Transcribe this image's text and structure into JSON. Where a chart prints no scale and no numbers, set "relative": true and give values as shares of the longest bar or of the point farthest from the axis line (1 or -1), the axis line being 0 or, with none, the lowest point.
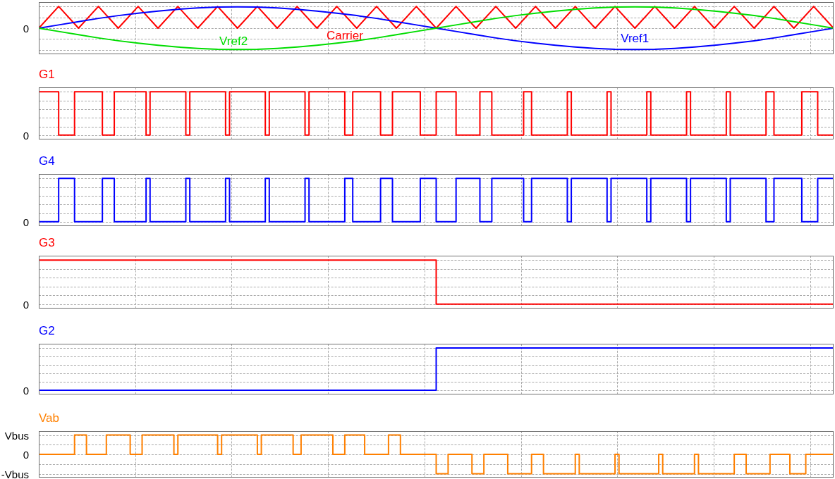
{
  "chart_data": [
    {
      "type": "line",
      "relative": true,
      "grid": true,
      "annotations": [
        "0"
      ],
      "categories": [
        null,
        null,
        null,
        null,
        null,
        null,
        null,
        null,
        null,
        null,
        null,
        null,
        null,
        null,
        null,
        null,
        null,
        null,
        null,
        null,
        null,
        null,
        null,
        null,
        null,
        null,
        null,
        null,
        null,
        null,
        null,
        null,
        null,
        null,
        null,
        null,
        null,
        null,
        null,
        null,
        null
      ],
      "series": [
        {
          "name": "Carrier",
          "color": "#ff0000",
          "values": [
            0,
            1,
            0,
            1,
            0,
            1,
            0,
            1,
            0,
            1,
            0,
            1,
            0,
            1,
            0,
            1,
            0,
            1,
            0,
            1,
            0,
            1,
            0,
            1,
            0,
            1,
            0,
            1,
            0,
            1,
            0,
            1,
            0,
            1,
            0,
            1,
            0,
            1,
            0,
            1,
            0
          ]
        },
        {
          "name": "Vref1",
          "color": "#0000ff",
          "values": [
            0,
            0.15,
            0.3,
            0.45,
            0.58,
            0.69,
            0.79,
            0.87,
            0.93,
            0.97,
            0.98,
            0.97,
            0.93,
            0.87,
            0.79,
            0.69,
            0.58,
            0.45,
            0.3,
            0.15,
            0,
            -0.15,
            -0.3,
            -0.45,
            -0.58,
            -0.69,
            -0.79,
            -0.87,
            -0.93,
            -0.97,
            -0.98,
            -0.97,
            -0.93,
            -0.87,
            -0.79,
            -0.69,
            -0.58,
            -0.45,
            -0.3,
            -0.15,
            0
          ]
        },
        {
          "name": "Vref2",
          "color": "#00dd00",
          "values": [
            0,
            -0.15,
            -0.3,
            -0.45,
            -0.58,
            -0.69,
            -0.79,
            -0.87,
            -0.93,
            -0.97,
            -0.98,
            -0.97,
            -0.93,
            -0.87,
            -0.79,
            -0.69,
            -0.58,
            -0.45,
            -0.3,
            -0.15,
            0,
            0.15,
            0.3,
            0.45,
            0.58,
            0.69,
            0.79,
            0.87,
            0.93,
            0.97,
            0.98,
            0.97,
            0.93,
            0.87,
            0.79,
            0.69,
            0.58,
            0.45,
            0.3,
            0.15,
            0
          ]
        }
      ]
    },
    {
      "type": "step",
      "title": "G1",
      "relative": true,
      "grid": true,
      "annotations": [
        "0"
      ],
      "categories": [
        null,
        null,
        null,
        null,
        null,
        null,
        null,
        null,
        null,
        null,
        null,
        null,
        null,
        null,
        null,
        null,
        null,
        null,
        null,
        null,
        null,
        null,
        null,
        null,
        null,
        null,
        null,
        null,
        null,
        null,
        null,
        null,
        null,
        null,
        null,
        null,
        null,
        null,
        null,
        null,
        null,
        null,
        null,
        null,
        null,
        null,
        null,
        null,
        null,
        null,
        null,
        null,
        null,
        null,
        null,
        null,
        null,
        null,
        null,
        null,
        null,
        null,
        null,
        null,
        null,
        null,
        null,
        null,
        null,
        null,
        null,
        null,
        null,
        null,
        null,
        null,
        null,
        null,
        null,
        null,
        null,
        null,
        null,
        null,
        null,
        null,
        null,
        null,
        null,
        null,
        null,
        null,
        null,
        null,
        null,
        null,
        null,
        null,
        null,
        null,
        null,
        null,
        null,
        null,
        null,
        null,
        null,
        null,
        null,
        null,
        null,
        null,
        null,
        null,
        null,
        null,
        null,
        null,
        null,
        null,
        null,
        null,
        null,
        null,
        null,
        null,
        null,
        null,
        null,
        null,
        null,
        null,
        null,
        null,
        null,
        null,
        null,
        null,
        null,
        null,
        null,
        null,
        null,
        null,
        null,
        null,
        null,
        null,
        null,
        null,
        null,
        null,
        null,
        null,
        null,
        null,
        null,
        null,
        null,
        null,
        null,
        null,
        null,
        null,
        null,
        null,
        null,
        null,
        null,
        null,
        null,
        null,
        null,
        null,
        null,
        null,
        null,
        null,
        null,
        null,
        null,
        null,
        null,
        null,
        null,
        null,
        null,
        null,
        null,
        null,
        null,
        null,
        null,
        null,
        null,
        null,
        null,
        null,
        null,
        null,
        null
      ],
      "series": [
        {
          "color": "#ff0000",
          "values": [
            1,
            1,
            1,
            1,
            1,
            0,
            0,
            0,
            0,
            1,
            1,
            1,
            1,
            1,
            1,
            1,
            0,
            0,
            0,
            1,
            1,
            1,
            1,
            1,
            1,
            1,
            1,
            0,
            1,
            1,
            1,
            1,
            1,
            1,
            1,
            1,
            1,
            0,
            1,
            1,
            1,
            1,
            1,
            1,
            1,
            1,
            1,
            0,
            1,
            1,
            1,
            1,
            1,
            1,
            1,
            1,
            1,
            0,
            1,
            1,
            1,
            1,
            1,
            1,
            1,
            1,
            1,
            0,
            1,
            1,
            1,
            1,
            1,
            1,
            1,
            1,
            1,
            0,
            0,
            1,
            1,
            1,
            1,
            1,
            1,
            1,
            0,
            0,
            0,
            1,
            1,
            1,
            1,
            1,
            1,
            1,
            0,
            0,
            0,
            0,
            1,
            1,
            1,
            1,
            1,
            0,
            0,
            0,
            0,
            0,
            0,
            1,
            1,
            1,
            0,
            0,
            0,
            0,
            0,
            0,
            0,
            0,
            1,
            1,
            0,
            0,
            0,
            0,
            0,
            0,
            0,
            0,
            0,
            1,
            0,
            0,
            0,
            0,
            0,
            0,
            0,
            0,
            0,
            1,
            0,
            0,
            0,
            0,
            0,
            0,
            0,
            0,
            0,
            1,
            0,
            0,
            0,
            0,
            0,
            0,
            0,
            0,
            0,
            1,
            0,
            0,
            0,
            0,
            0,
            0,
            0,
            0,
            0,
            1,
            0,
            0,
            0,
            0,
            0,
            0,
            0,
            0,
            0,
            1,
            1,
            0,
            0,
            0,
            0,
            0,
            0,
            0,
            1,
            1,
            1,
            1,
            0,
            0,
            0,
            0,
            0
          ]
        }
      ]
    },
    {
      "type": "step",
      "title": "G4",
      "relative": true,
      "grid": true,
      "annotations": [
        "0"
      ],
      "categories": [
        null,
        null,
        null,
        null,
        null,
        null,
        null,
        null,
        null,
        null,
        null,
        null,
        null,
        null,
        null,
        null,
        null,
        null,
        null,
        null,
        null,
        null,
        null,
        null,
        null,
        null,
        null,
        null,
        null,
        null,
        null,
        null,
        null,
        null,
        null,
        null,
        null,
        null,
        null,
        null,
        null,
        null,
        null,
        null,
        null,
        null,
        null,
        null,
        null,
        null,
        null,
        null,
        null,
        null,
        null,
        null,
        null,
        null,
        null,
        null,
        null,
        null,
        null,
        null,
        null,
        null,
        null,
        null,
        null,
        null,
        null,
        null,
        null,
        null,
        null,
        null,
        null,
        null,
        null,
        null,
        null,
        null,
        null,
        null,
        null,
        null,
        null,
        null,
        null,
        null,
        null,
        null,
        null,
        null,
        null,
        null,
        null,
        null,
        null,
        null,
        null,
        null,
        null,
        null,
        null,
        null,
        null,
        null,
        null,
        null,
        null,
        null,
        null,
        null,
        null,
        null,
        null,
        null,
        null,
        null,
        null,
        null,
        null,
        null,
        null,
        null,
        null,
        null,
        null,
        null,
        null,
        null,
        null,
        null,
        null,
        null,
        null,
        null,
        null,
        null,
        null,
        null,
        null,
        null,
        null,
        null,
        null,
        null,
        null,
        null,
        null,
        null,
        null,
        null,
        null,
        null,
        null,
        null,
        null,
        null,
        null,
        null,
        null,
        null,
        null,
        null,
        null,
        null,
        null,
        null,
        null,
        null,
        null,
        null,
        null,
        null,
        null,
        null,
        null,
        null,
        null,
        null,
        null,
        null,
        null,
        null,
        null,
        null,
        null,
        null,
        null,
        null,
        null,
        null,
        null,
        null,
        null,
        null,
        null,
        null,
        null
      ],
      "series": [
        {
          "color": "#0000ff",
          "values": [
            0,
            0,
            0,
            0,
            0,
            1,
            1,
            1,
            1,
            0,
            0,
            0,
            0,
            0,
            0,
            0,
            1,
            1,
            1,
            0,
            0,
            0,
            0,
            0,
            0,
            0,
            0,
            1,
            0,
            0,
            0,
            0,
            0,
            0,
            0,
            0,
            0,
            1,
            0,
            0,
            0,
            0,
            0,
            0,
            0,
            0,
            0,
            1,
            0,
            0,
            0,
            0,
            0,
            0,
            0,
            0,
            0,
            1,
            0,
            0,
            0,
            0,
            0,
            0,
            0,
            0,
            0,
            1,
            0,
            0,
            0,
            0,
            0,
            0,
            0,
            0,
            0,
            1,
            1,
            0,
            0,
            0,
            0,
            0,
            0,
            0,
            1,
            1,
            1,
            0,
            0,
            0,
            0,
            0,
            0,
            0,
            1,
            1,
            1,
            1,
            0,
            0,
            0,
            0,
            0,
            1,
            1,
            1,
            1,
            1,
            1,
            0,
            0,
            0,
            1,
            1,
            1,
            1,
            1,
            1,
            1,
            1,
            0,
            0,
            1,
            1,
            1,
            1,
            1,
            1,
            1,
            1,
            1,
            0,
            1,
            1,
            1,
            1,
            1,
            1,
            1,
            1,
            1,
            0,
            1,
            1,
            1,
            1,
            1,
            1,
            1,
            1,
            1,
            0,
            1,
            1,
            1,
            1,
            1,
            1,
            1,
            1,
            1,
            0,
            1,
            1,
            1,
            1,
            1,
            1,
            1,
            1,
            1,
            0,
            1,
            1,
            1,
            1,
            1,
            1,
            1,
            1,
            1,
            0,
            0,
            1,
            1,
            1,
            1,
            1,
            1,
            1,
            0,
            0,
            0,
            0,
            1,
            1,
            1,
            1,
            1
          ]
        }
      ]
    },
    {
      "type": "step",
      "title": "G3",
      "relative": true,
      "grid": true,
      "annotations": [
        "0"
      ],
      "categories": [
        null,
        null,
        null
      ],
      "series": [
        {
          "color": "#ff0000",
          "values": [
            1,
            0,
            0
          ]
        }
      ]
    },
    {
      "type": "step",
      "title": "G2",
      "relative": true,
      "grid": true,
      "annotations": [
        "0"
      ],
      "categories": [
        null,
        null,
        null
      ],
      "series": [
        {
          "color": "#0000ff",
          "values": [
            0,
            1,
            1
          ]
        }
      ]
    },
    {
      "type": "step",
      "title": "Vab",
      "relative": true,
      "grid": true,
      "annotations": [
        "Vbus",
        "0",
        "-Vbus"
      ],
      "categories": [
        null,
        null,
        null,
        null,
        null,
        null,
        null,
        null,
        null,
        null,
        null,
        null,
        null,
        null,
        null,
        null,
        null,
        null,
        null,
        null,
        null,
        null,
        null,
        null,
        null,
        null,
        null,
        null,
        null,
        null,
        null,
        null,
        null,
        null,
        null,
        null,
        null,
        null,
        null,
        null,
        null,
        null,
        null,
        null,
        null,
        null,
        null,
        null,
        null,
        null,
        null,
        null,
        null,
        null,
        null,
        null,
        null,
        null,
        null,
        null,
        null,
        null,
        null,
        null,
        null,
        null,
        null,
        null,
        null,
        null,
        null,
        null,
        null,
        null,
        null,
        null,
        null,
        null,
        null,
        null,
        null,
        null,
        null,
        null,
        null,
        null,
        null,
        null,
        null,
        null,
        null,
        null,
        null,
        null,
        null,
        null,
        null,
        null,
        null,
        null,
        null,
        null,
        null,
        null,
        null,
        null,
        null,
        null,
        null,
        null,
        null,
        null,
        null,
        null,
        null,
        null,
        null,
        null,
        null,
        null,
        null,
        null,
        null,
        null,
        null,
        null,
        null,
        null,
        null,
        null,
        null,
        null,
        null,
        null,
        null,
        null,
        null,
        null,
        null,
        null,
        null,
        null,
        null,
        null,
        null,
        null,
        null,
        null,
        null,
        null,
        null,
        null,
        null,
        null,
        null,
        null,
        null,
        null,
        null,
        null,
        null,
        null,
        null,
        null,
        null,
        null,
        null,
        null,
        null,
        null,
        null,
        null,
        null,
        null,
        null,
        null,
        null,
        null,
        null,
        null,
        null,
        null,
        null,
        null,
        null,
        null,
        null,
        null,
        null,
        null,
        null,
        null,
        null,
        null,
        null,
        null,
        null,
        null,
        null,
        null,
        null
      ],
      "series": [
        {
          "color": "#ff8000",
          "values": [
            0,
            0,
            0,
            0,
            0,
            0,
            0,
            0,
            0,
            1,
            1,
            1,
            0,
            0,
            0,
            0,
            0,
            1,
            1,
            1,
            1,
            1,
            1,
            0,
            0,
            0,
            1,
            1,
            1,
            1,
            1,
            1,
            1,
            1,
            0,
            1,
            1,
            1,
            1,
            1,
            1,
            1,
            1,
            1,
            1,
            0,
            1,
            1,
            1,
            1,
            1,
            1,
            1,
            1,
            1,
            0,
            1,
            1,
            1,
            1,
            1,
            1,
            1,
            1,
            0,
            0,
            1,
            1,
            1,
            1,
            1,
            1,
            1,
            1,
            0,
            0,
            0,
            1,
            1,
            1,
            1,
            1,
            0,
            0,
            0,
            0,
            0,
            0,
            1,
            1,
            1,
            0,
            0,
            0,
            0,
            0,
            0,
            0,
            0,
            0,
            -1,
            -1,
            -1,
            0,
            0,
            0,
            0,
            0,
            0,
            -1,
            -1,
            -1,
            0,
            0,
            0,
            0,
            0,
            0,
            -1,
            -1,
            -1,
            -1,
            -1,
            -1,
            0,
            0,
            0,
            -1,
            -1,
            -1,
            -1,
            -1,
            -1,
            -1,
            -1,
            0,
            -1,
            -1,
            -1,
            -1,
            -1,
            -1,
            -1,
            -1,
            -1,
            0,
            -1,
            -1,
            -1,
            -1,
            -1,
            -1,
            -1,
            -1,
            -1,
            -1,
            0,
            -1,
            -1,
            -1,
            -1,
            -1,
            -1,
            -1,
            -1,
            0,
            -1,
            -1,
            -1,
            -1,
            -1,
            -1,
            -1,
            -1,
            -1,
            0,
            0,
            0,
            -1,
            -1,
            -1,
            -1,
            -1,
            -1,
            0,
            0,
            0,
            0,
            0,
            -1,
            -1,
            -1,
            -1,
            0,
            0,
            0,
            0,
            0,
            0,
            0,
            0
          ]
        }
      ]
    }
  ]
}
